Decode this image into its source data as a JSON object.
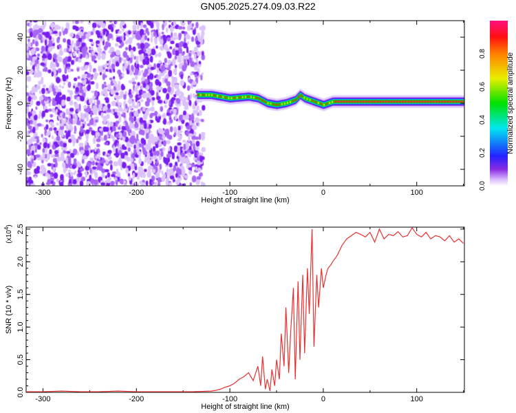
{
  "title": "GN05.2025.274.09.03.R22",
  "colors": {
    "snr_line": "#e83030",
    "frame": "#000000"
  },
  "chart_data": [
    {
      "type": "heatmap",
      "xlabel": "Height of straight line (km)",
      "ylabel": "Frequency (Hz)",
      "xlim": [
        -318,
        151
      ],
      "ylim": [
        -50,
        50
      ],
      "xticks": [
        -300,
        -200,
        -100,
        0,
        100
      ],
      "yticks": [
        -40,
        -20,
        0,
        20,
        40
      ],
      "noise_region_x": [
        -318,
        -128
      ],
      "ridge": {
        "x": [
          -135,
          -120,
          -100,
          -80,
          -70,
          -60,
          -50,
          -40,
          -30,
          -25,
          -20,
          -10,
          0,
          10,
          20,
          50,
          150
        ],
        "freq": [
          5,
          5,
          3,
          4,
          3,
          0,
          -1,
          0,
          2,
          5,
          3,
          1,
          -1,
          1,
          1,
          1,
          1
        ]
      },
      "colorbar": {
        "label": "Normalized spectral amplitude",
        "range": [
          0,
          1
        ],
        "ticks": [
          "0.0",
          "0.2",
          "0.4",
          "0.6",
          "0.8"
        ]
      }
    },
    {
      "type": "line",
      "xlabel": "Height of straight line (km)",
      "ylabel": "SNR (10 * v/v)",
      "yscale_label": "(x10",
      "yscale_exp": "4",
      "xlim": [
        -318,
        151
      ],
      "ylim": [
        0,
        2.53
      ],
      "xticks": [
        -300,
        -200,
        -100,
        0,
        100
      ],
      "yticks": [
        "0.0",
        "0.5",
        "1.0",
        "1.5",
        "2.0",
        "2.5"
      ],
      "series": [
        {
          "name": "SNR",
          "x": [
            -318,
            -300,
            -280,
            -260,
            -240,
            -220,
            -200,
            -180,
            -160,
            -140,
            -120,
            -115,
            -110,
            -105,
            -100,
            -95,
            -90,
            -85,
            -80,
            -75,
            -70,
            -67,
            -65,
            -62,
            -60,
            -57,
            -55,
            -52,
            -50,
            -47,
            -45,
            -42,
            -40,
            -37,
            -35,
            -32,
            -30,
            -27,
            -25,
            -22,
            -20,
            -17,
            -15,
            -12,
            -10,
            -7,
            -5,
            -2,
            0,
            3,
            5,
            8,
            10,
            15,
            20,
            25,
            30,
            35,
            40,
            45,
            50,
            55,
            60,
            65,
            70,
            75,
            80,
            85,
            90,
            95,
            100,
            105,
            110,
            115,
            120,
            125,
            130,
            135,
            140,
            145,
            150
          ],
          "y": [
            0.01,
            0.01,
            0.02,
            0.01,
            0.01,
            0.02,
            0.01,
            0.01,
            0.01,
            0.01,
            0.02,
            0.03,
            0.05,
            0.08,
            0.1,
            0.14,
            0.2,
            0.24,
            0.3,
            0.18,
            0.4,
            0.1,
            0.55,
            0.05,
            0.2,
            0.02,
            0.35,
            0.1,
            0.5,
            0.2,
            0.9,
            0.4,
            1.3,
            0.3,
            0.9,
            1.6,
            0.2,
            1.7,
            0.5,
            1.8,
            0.6,
            1.9,
            1.2,
            2.5,
            0.7,
            1.8,
            1.3,
            1.9,
            1.6,
            1.8,
            1.9,
            1.95,
            2.0,
            2.1,
            2.25,
            2.35,
            2.4,
            2.45,
            2.42,
            2.38,
            2.45,
            2.3,
            2.5,
            2.35,
            2.42,
            2.4,
            2.46,
            2.38,
            2.4,
            2.52,
            2.42,
            2.38,
            2.45,
            2.35,
            2.4,
            2.38,
            2.32,
            2.4,
            2.3,
            2.35,
            2.28
          ]
        }
      ]
    }
  ]
}
